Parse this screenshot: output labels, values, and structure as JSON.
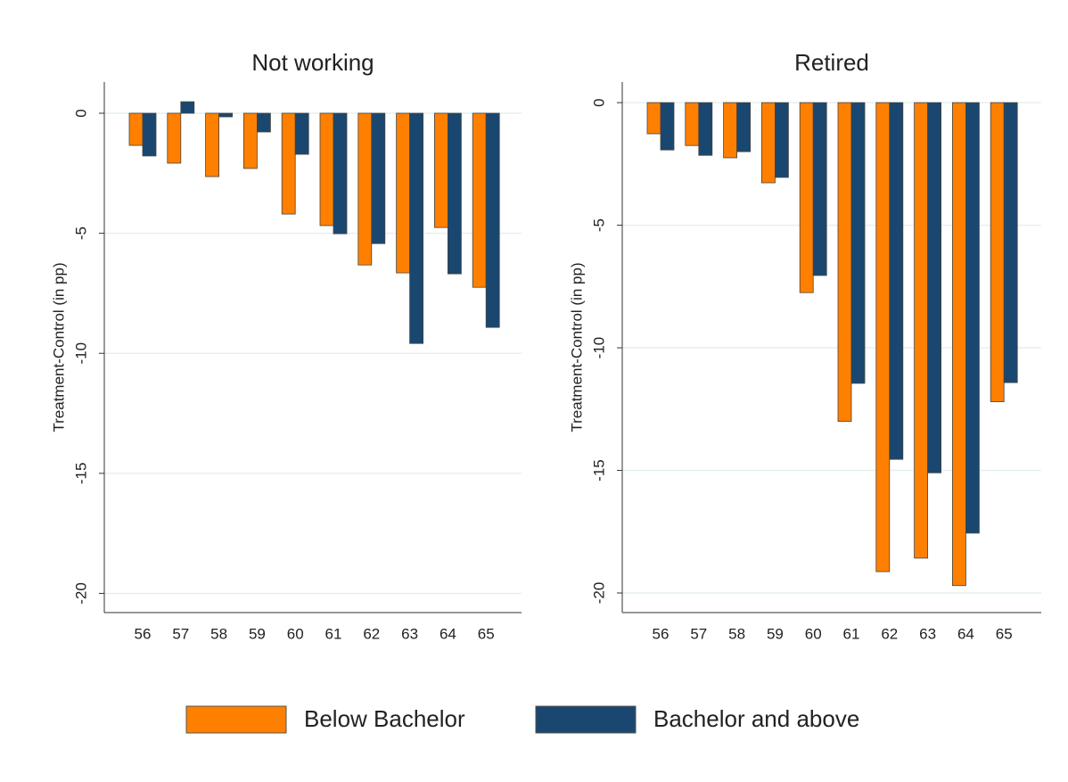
{
  "chart_data": [
    {
      "type": "bar",
      "title": "Not working",
      "y_label": "Treatment-Control (in pp)",
      "categories": [
        "56",
        "57",
        "58",
        "59",
        "60",
        "61",
        "62",
        "63",
        "64",
        "65"
      ],
      "series": [
        {
          "name": "Below Bachelor",
          "color": "#ff8000",
          "values": [
            -1.34,
            -2.08,
            -2.64,
            -2.3,
            -4.2,
            -4.68,
            -6.32,
            -6.65,
            -4.76,
            -7.25
          ]
        },
        {
          "name": "Bachelor and above",
          "color": "#1a476f",
          "values": [
            -1.78,
            0.48,
            -0.15,
            -0.78,
            -1.71,
            -5.02,
            -5.43,
            -9.59,
            -6.69,
            -8.92
          ]
        }
      ],
      "ylim": [
        -20.8,
        1.3
      ],
      "yticks": [
        -20,
        -15,
        -10,
        -5,
        0
      ],
      "grid": true
    },
    {
      "type": "bar",
      "title": "Retired",
      "y_label": "Treatment-Control (in pp)",
      "categories": [
        "56",
        "57",
        "58",
        "59",
        "60",
        "61",
        "62",
        "63",
        "64",
        "65"
      ],
      "series": [
        {
          "color": "#ff8000",
          "values": [
            -1.27,
            -1.75,
            -2.25,
            -3.27,
            -7.75,
            -13.0,
            -19.13,
            -18.58,
            -19.7,
            -12.2
          ]
        },
        {
          "color": "#1a476f",
          "values": [
            -1.93,
            -2.15,
            -2.0,
            -3.05,
            -7.05,
            -11.45,
            -14.55,
            -15.1,
            -17.56,
            -11.42
          ]
        }
      ],
      "ylim": [
        -20.8,
        0.84
      ],
      "yticks": [
        -20,
        -15,
        -10,
        -5,
        0
      ],
      "grid": true
    }
  ]
}
